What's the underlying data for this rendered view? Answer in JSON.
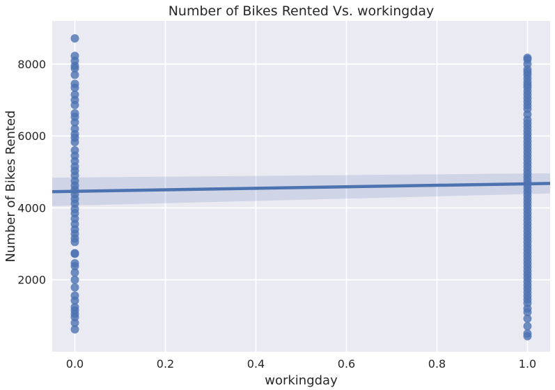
{
  "chart_data": {
    "type": "scatter",
    "title": "Number of Bikes Rented Vs. workingday",
    "xlabel": "workingday",
    "ylabel": "Number of Bikes Rented",
    "xlim": [
      -0.05,
      1.05
    ],
    "ylim": [
      0,
      9200
    ],
    "xticks": [
      0.0,
      0.2,
      0.4,
      0.6,
      0.8,
      1.0
    ],
    "xtick_labels": [
      "0.0",
      "0.2",
      "0.4",
      "0.6",
      "0.8",
      "1.0"
    ],
    "yticks": [
      2000,
      4000,
      6000,
      8000
    ],
    "ytick_labels": [
      "2000",
      "4000",
      "6000",
      "8000"
    ],
    "grid": true,
    "series": [
      {
        "color": "#4c72b0",
        "points": [
          [
            0,
            8714
          ],
          [
            0,
            8227
          ],
          [
            0,
            8090
          ],
          [
            0,
            7950
          ],
          [
            0,
            7880
          ],
          [
            0,
            7700
          ],
          [
            0,
            7450
          ],
          [
            0,
            7340
          ],
          [
            0,
            7150
          ],
          [
            0,
            7000
          ],
          [
            0,
            6860
          ],
          [
            0,
            6630
          ],
          [
            0,
            6530
          ],
          [
            0,
            6380
          ],
          [
            0,
            6200
          ],
          [
            0,
            6050
          ],
          [
            0,
            5950
          ],
          [
            0,
            5830
          ],
          [
            0,
            5600
          ],
          [
            0,
            5450
          ],
          [
            0,
            5300
          ],
          [
            0,
            5150
          ],
          [
            0,
            5030
          ],
          [
            0,
            4900
          ],
          [
            0,
            4750
          ],
          [
            0,
            4620
          ],
          [
            0,
            4500
          ],
          [
            0,
            4380
          ],
          [
            0,
            4250
          ],
          [
            0,
            4120
          ],
          [
            0,
            3970
          ],
          [
            0,
            3850
          ],
          [
            0,
            3700
          ],
          [
            0,
            3550
          ],
          [
            0,
            3400
          ],
          [
            0,
            3280
          ],
          [
            0,
            3150
          ],
          [
            0,
            3050
          ],
          [
            0,
            2740
          ],
          [
            0,
            2720
          ],
          [
            0,
            2460
          ],
          [
            0,
            2380
          ],
          [
            0,
            2200
          ],
          [
            0,
            2000
          ],
          [
            0,
            1790
          ],
          [
            0,
            1560
          ],
          [
            0,
            1420
          ],
          [
            0,
            1240
          ],
          [
            0,
            1150
          ],
          [
            0,
            1050
          ],
          [
            0,
            960
          ],
          [
            0,
            801
          ],
          [
            0,
            623
          ],
          [
            1,
            8173
          ],
          [
            1,
            8130
          ],
          [
            1,
            8000
          ],
          [
            1,
            7850
          ],
          [
            1,
            7780
          ],
          [
            1,
            7700
          ],
          [
            1,
            7600
          ],
          [
            1,
            7500
          ],
          [
            1,
            7420
          ],
          [
            1,
            7350
          ],
          [
            1,
            7250
          ],
          [
            1,
            7150
          ],
          [
            1,
            7050
          ],
          [
            1,
            6950
          ],
          [
            1,
            6850
          ],
          [
            1,
            6750
          ],
          [
            1,
            6600
          ],
          [
            1,
            6450
          ],
          [
            1,
            6350
          ],
          [
            1,
            6250
          ],
          [
            1,
            6150
          ],
          [
            1,
            6050
          ],
          [
            1,
            5950
          ],
          [
            1,
            5850
          ],
          [
            1,
            5750
          ],
          [
            1,
            5650
          ],
          [
            1,
            5550
          ],
          [
            1,
            5450
          ],
          [
            1,
            5350
          ],
          [
            1,
            5250
          ],
          [
            1,
            5150
          ],
          [
            1,
            5050
          ],
          [
            1,
            4950
          ],
          [
            1,
            4850
          ],
          [
            1,
            4750
          ],
          [
            1,
            4650
          ],
          [
            1,
            4550
          ],
          [
            1,
            4450
          ],
          [
            1,
            4350
          ],
          [
            1,
            4250
          ],
          [
            1,
            4150
          ],
          [
            1,
            4050
          ],
          [
            1,
            3950
          ],
          [
            1,
            3850
          ],
          [
            1,
            3750
          ],
          [
            1,
            3650
          ],
          [
            1,
            3550
          ],
          [
            1,
            3450
          ],
          [
            1,
            3350
          ],
          [
            1,
            3250
          ],
          [
            1,
            3150
          ],
          [
            1,
            3050
          ],
          [
            1,
            2950
          ],
          [
            1,
            2850
          ],
          [
            1,
            2750
          ],
          [
            1,
            2650
          ],
          [
            1,
            2550
          ],
          [
            1,
            2450
          ],
          [
            1,
            2350
          ],
          [
            1,
            2250
          ],
          [
            1,
            2150
          ],
          [
            1,
            2050
          ],
          [
            1,
            1950
          ],
          [
            1,
            1850
          ],
          [
            1,
            1750
          ],
          [
            1,
            1650
          ],
          [
            1,
            1550
          ],
          [
            1,
            1450
          ],
          [
            1,
            1350
          ],
          [
            1,
            1200
          ],
          [
            1,
            1100
          ],
          [
            1,
            920
          ],
          [
            1,
            710
          ],
          [
            1,
            506
          ],
          [
            1,
            431
          ]
        ]
      }
    ],
    "regression": {
      "color": "#4c72b0",
      "band_color": "#4c72b0",
      "line": [
        [
          -0.05,
          4450
        ],
        [
          1.05,
          4680
        ]
      ],
      "ci_upper": [
        [
          -0.05,
          4840
        ],
        [
          1.05,
          4960
        ]
      ],
      "ci_lower": [
        [
          -0.05,
          4050
        ],
        [
          1.05,
          4400
        ]
      ]
    }
  }
}
